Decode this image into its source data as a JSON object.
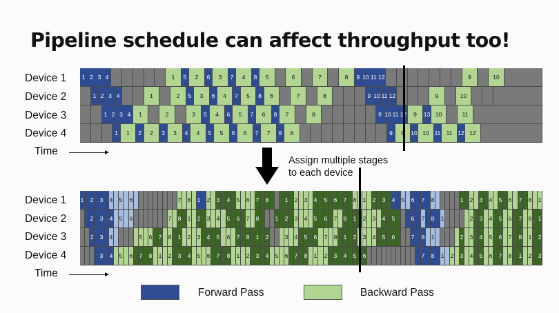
{
  "title": "Pipeline schedule can affect throughput too!",
  "top": {
    "devices": [
      "Device 1",
      "Device 2",
      "Device 3",
      "Device 4"
    ],
    "time_label": "Time"
  },
  "bottom": {
    "devices": [
      "Device 1",
      "Device 2",
      "Device 3",
      "Device 4"
    ],
    "time_label": "Time"
  },
  "annotation": {
    "line1": "Assign multiple stages",
    "line2": "to each device"
  },
  "legend": {
    "forward_label": "Forward Pass",
    "backward_label": "Backward Pass"
  },
  "colors": {
    "forward": "#2d4c94",
    "backward": "#b3d592",
    "idle": "#7a7a7a",
    "forward2": "#a7bee0",
    "backward2": "#3c6624"
  },
  "top_schedule": [
    [
      "F1",
      "F2",
      "F3",
      "F4",
      "I",
      "I",
      "I",
      "I",
      "I",
      "B1",
      "F5",
      "B2",
      "F6",
      "B3",
      "F7",
      "B4",
      "F8",
      "B5",
      "I",
      "B6",
      "I",
      "B7",
      "I",
      "B8",
      "F9",
      "F10",
      "F11",
      "F12",
      "I",
      "I",
      "I",
      "I",
      "I",
      "I",
      "I",
      "B9",
      "I",
      "B10"
    ],
    [
      "I",
      "F1",
      "F2",
      "F3",
      "F4",
      "I",
      "I",
      "B1",
      "I",
      "B2",
      "F5",
      "B3",
      "F6",
      "B4",
      "F7",
      "B5",
      "F8",
      "B6",
      "I",
      "B7",
      "I",
      "B8",
      "I",
      "I",
      "I",
      "F9",
      "F10",
      "F11",
      "F12",
      "I",
      "I",
      "I",
      "B9",
      "I",
      "B10",
      "I",
      "I"
    ],
    [
      "I",
      "I",
      "F1",
      "F2",
      "F3",
      "F4",
      "B1",
      "I",
      "B2",
      "I",
      "B3",
      "F5",
      "B4",
      "F6",
      "B5",
      "F7",
      "B6",
      "F8",
      "B7",
      "I",
      "B8",
      "I",
      "I",
      "I",
      "I",
      "I",
      "F9",
      "F10",
      "F11",
      "F12",
      "B9",
      "F13",
      "B10",
      "I",
      "B11"
    ],
    [
      "I",
      "I",
      "I",
      "F1",
      "B1",
      "F2",
      "B2",
      "F3",
      "B3",
      "F4",
      "B4",
      "F5",
      "B5",
      "F6",
      "B6",
      "F7",
      "B7",
      "F8",
      "B8",
      "I",
      "I",
      "I",
      "I",
      "I",
      "I",
      "I",
      "I",
      "F9",
      "B9",
      "F10",
      "B10",
      "F11",
      "B11",
      "F12",
      "B12"
    ]
  ]
}
